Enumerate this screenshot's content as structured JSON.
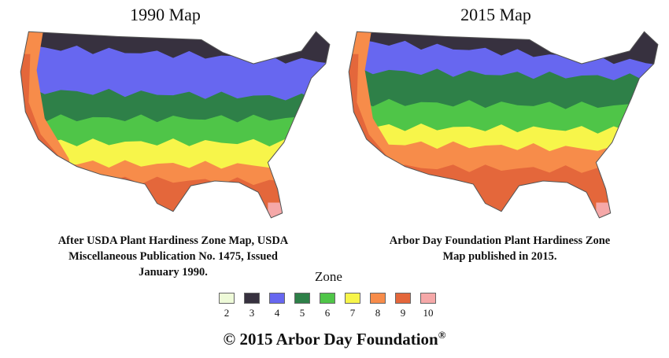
{
  "maps": [
    {
      "title": "1990 Map",
      "caption_lines": [
        "After USDA Plant Hardiness Zone Map, USDA",
        "Miscellaneous Publication No. 1475, Issued",
        "January 1990."
      ]
    },
    {
      "title": "2015 Map",
      "caption_lines": [
        "Arbor Day Foundation Plant Hardiness Zone",
        "Map published in 2015."
      ]
    }
  ],
  "legend": {
    "title": "Zone",
    "zones": [
      {
        "label": "2",
        "color": "#eefad8"
      },
      {
        "label": "3",
        "color": "#37313f"
      },
      {
        "label": "4",
        "color": "#6767f0"
      },
      {
        "label": "5",
        "color": "#2e8048"
      },
      {
        "label": "6",
        "color": "#4fc548"
      },
      {
        "label": "7",
        "color": "#f7f54a"
      },
      {
        "label": "8",
        "color": "#f78c4a"
      },
      {
        "label": "9",
        "color": "#e4673b"
      },
      {
        "label": "10",
        "color": "#f5a8a8"
      }
    ]
  },
  "footer": {
    "text": "© 2015 Arbor Day Foundation",
    "mark": "®"
  }
}
